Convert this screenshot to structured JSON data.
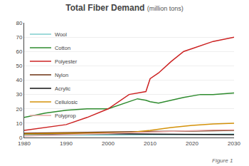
{
  "chart_data": {
    "type": "line",
    "title": "Total Fiber Demand",
    "subtitle": "(million tons)",
    "annotations": [
      "Figure 1"
    ],
    "xlim": [
      1980,
      2030
    ],
    "xticks": [
      1980,
      1990,
      2000,
      2010,
      2020,
      2030
    ],
    "ylim": [
      0,
      80
    ],
    "yticks": [
      0,
      10,
      20,
      30,
      40,
      50,
      60,
      70,
      80
    ],
    "grid": true,
    "legend": "upper left",
    "series": [
      {
        "name": "Wool",
        "color": "#7ecece",
        "x": [
          1980,
          1985,
          1990,
          1995,
          2000,
          2005,
          2010,
          2015,
          2020,
          2025,
          2030
        ],
        "values": [
          1.5,
          1.7,
          1.9,
          1.8,
          1.8,
          1.9,
          2.0,
          2.1,
          2.2,
          2.3,
          2.4
        ]
      },
      {
        "name": "Cotton",
        "color": "#2e8b2e",
        "x": [
          1980,
          1985,
          1990,
          1995,
          2000,
          2005,
          2007,
          2009,
          2010,
          2012,
          2015,
          2018,
          2022,
          2025,
          2030
        ],
        "values": [
          14,
          17,
          19,
          20,
          20,
          25,
          27,
          26,
          25,
          24,
          26,
          28,
          30,
          30,
          31
        ]
      },
      {
        "name": "Polyester",
        "color": "#cc2222",
        "x": [
          1980,
          1985,
          1990,
          1995,
          2000,
          2005,
          2007,
          2008,
          2009,
          2010,
          2012,
          2015,
          2018,
          2020,
          2025,
          2030
        ],
        "values": [
          5,
          7,
          9,
          14,
          20,
          30,
          31,
          31.5,
          32,
          41,
          45,
          53,
          60,
          62,
          67,
          70
        ]
      },
      {
        "name": "Nylon",
        "color": "#6b3010",
        "x": [
          1980,
          1990,
          2000,
          2010,
          2020,
          2030
        ],
        "values": [
          3.0,
          3.5,
          4.0,
          4.2,
          4.5,
          5.0
        ]
      },
      {
        "name": "Acrylic",
        "color": "#101010",
        "x": [
          1980,
          1990,
          2000,
          2010,
          2020,
          2030
        ],
        "values": [
          2.5,
          2.6,
          2.6,
          2.3,
          2.1,
          2.0
        ]
      },
      {
        "name": "Cellulosic",
        "color": "#d4920a",
        "x": [
          1980,
          1985,
          1990,
          1995,
          2000,
          2005,
          2010,
          2015,
          2020,
          2025,
          2030
        ],
        "values": [
          2.5,
          2.8,
          3.0,
          3.0,
          3.2,
          3.5,
          5.0,
          7.0,
          8.5,
          9.5,
          10
        ]
      },
      {
        "name": "Polyprop",
        "color": "#e8a8a8",
        "x": [
          1980,
          1985,
          1990,
          1995,
          2000,
          2005,
          2010,
          2015,
          2020,
          2025,
          2030
        ],
        "values": [
          1.0,
          1.5,
          2.0,
          2.5,
          3.0,
          3.5,
          4.0,
          4.5,
          5.0,
          5.2,
          5.3
        ]
      }
    ]
  }
}
